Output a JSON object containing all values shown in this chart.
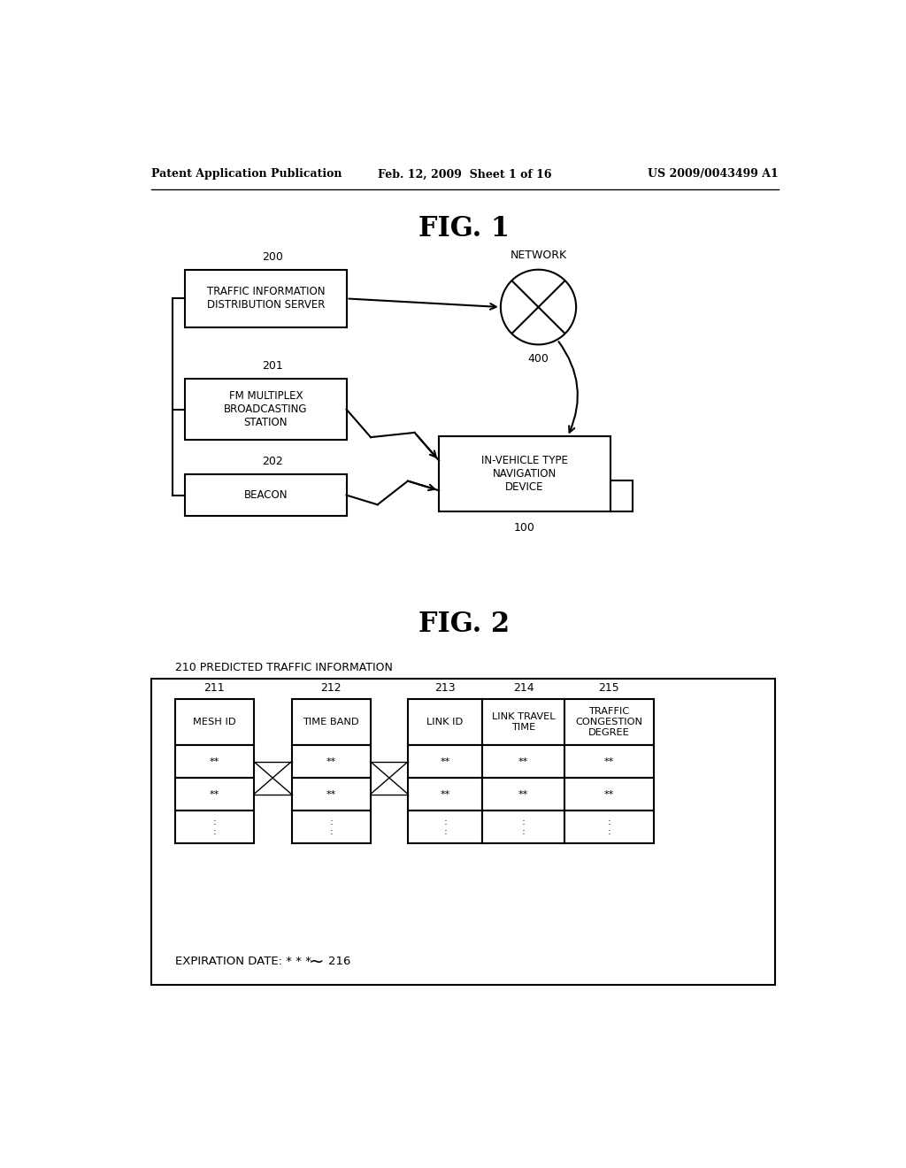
{
  "header_left": "Patent Application Publication",
  "header_center": "Feb. 12, 2009  Sheet 1 of 16",
  "header_right": "US 2009/0043499 A1",
  "fig1_title": "FIG. 1",
  "fig2_title": "FIG. 2",
  "bg_color": "#ffffff",
  "line_color": "#000000",
  "boxes": {
    "server": {
      "label": "TRAFFIC INFORMATION\nDISTRIBUTION SERVER",
      "num": "200"
    },
    "fm": {
      "label": "FM MULTIPLEX\nBROADCASTING\nSTATION",
      "num": "201"
    },
    "beacon": {
      "label": "BEACON",
      "num": "202"
    },
    "nav": {
      "label": "IN-VEHICLE TYPE\nNAVIGATION\nDEVICE",
      "num": "100"
    },
    "network": {
      "label": "NETWORK",
      "num": "400"
    }
  },
  "fig2": {
    "outer_label": "210 PREDICTED TRAFFIC INFORMATION",
    "col1_num": "211",
    "col2_num": "212",
    "col3_num": "213",
    "col4_num": "214",
    "col5_num": "215",
    "col1_header": "MESH ID",
    "col2_header": "TIME BAND",
    "col3_header": "LINK ID",
    "col4_header": "LINK TRAVEL\nTIME",
    "col5_header": "TRAFFIC\nCONGESTION\nDEGREE",
    "expiration_label": "EXPIRATION DATE: * * *",
    "exp_num": "216"
  }
}
